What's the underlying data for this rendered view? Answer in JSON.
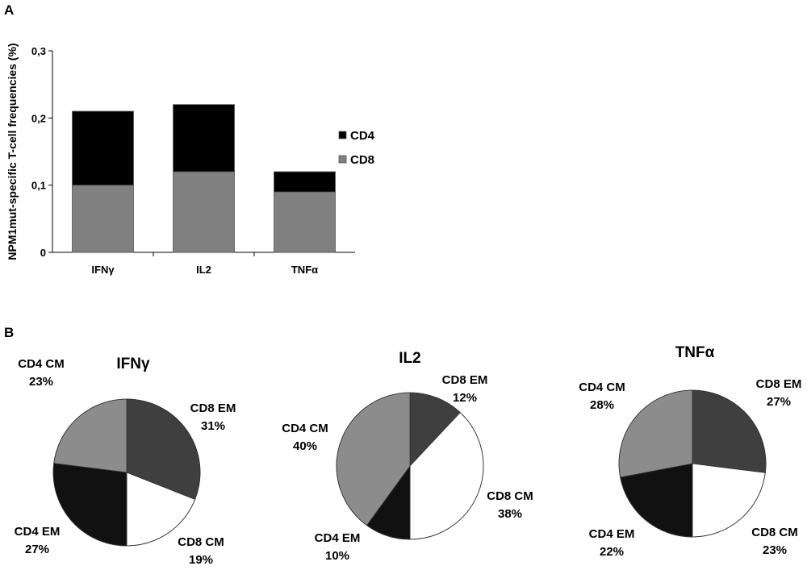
{
  "panels": {
    "a": "A",
    "b": "B"
  },
  "chart_data": [
    {
      "type": "bar",
      "stacked": true,
      "categories": [
        "IFNγ",
        "IL2",
        "TNFα"
      ],
      "series": [
        {
          "name": "CD8",
          "values": [
            0.1,
            0.12,
            0.09
          ],
          "color": "#808080"
        },
        {
          "name": "CD4",
          "values": [
            0.11,
            0.1,
            0.03
          ],
          "color": "#000000"
        }
      ],
      "ylabel": "NPM1mut-specific T-cell frequencies (%)",
      "xlabel": "",
      "ylim": [
        0,
        0.3
      ],
      "yticks": [
        0,
        0.1,
        0.2,
        0.3
      ],
      "ytick_labels": [
        "0",
        "0,1",
        "0,2",
        "0,3"
      ],
      "legend": {
        "entries": [
          "CD4",
          "CD8"
        ],
        "placement": "right"
      },
      "grid": false
    },
    {
      "type": "pie",
      "title": "IFNγ",
      "slices": [
        {
          "label": "CD8 EM",
          "value": 31,
          "pct": "31%",
          "color": "#3f3f3f"
        },
        {
          "label": "CD8 CM",
          "value": 19,
          "pct": "19%",
          "color": "#ffffff"
        },
        {
          "label": "CD4 EM",
          "value": 27,
          "pct": "27%",
          "color": "#111111"
        },
        {
          "label": "CD4 CM",
          "value": 23,
          "pct": "23%",
          "color": "#8c8c8c"
        }
      ]
    },
    {
      "type": "pie",
      "title": "IL2",
      "slices": [
        {
          "label": "CD8 EM",
          "value": 12,
          "pct": "12%",
          "color": "#3f3f3f"
        },
        {
          "label": "CD8 CM",
          "value": 38,
          "pct": "38%",
          "color": "#ffffff"
        },
        {
          "label": "CD4 EM",
          "value": 10,
          "pct": "10%",
          "color": "#111111"
        },
        {
          "label": "CD4 CM",
          "value": 40,
          "pct": "40%",
          "color": "#8c8c8c"
        }
      ]
    },
    {
      "type": "pie",
      "title": "TNFα",
      "slices": [
        {
          "label": "CD8 EM",
          "value": 27,
          "pct": "27%",
          "color": "#3f3f3f"
        },
        {
          "label": "CD8 CM",
          "value": 23,
          "pct": "23%",
          "color": "#ffffff"
        },
        {
          "label": "CD4 EM",
          "value": 22,
          "pct": "22%",
          "color": "#111111"
        },
        {
          "label": "CD4 CM",
          "value": 28,
          "pct": "28%",
          "color": "#8c8c8c"
        }
      ]
    }
  ]
}
